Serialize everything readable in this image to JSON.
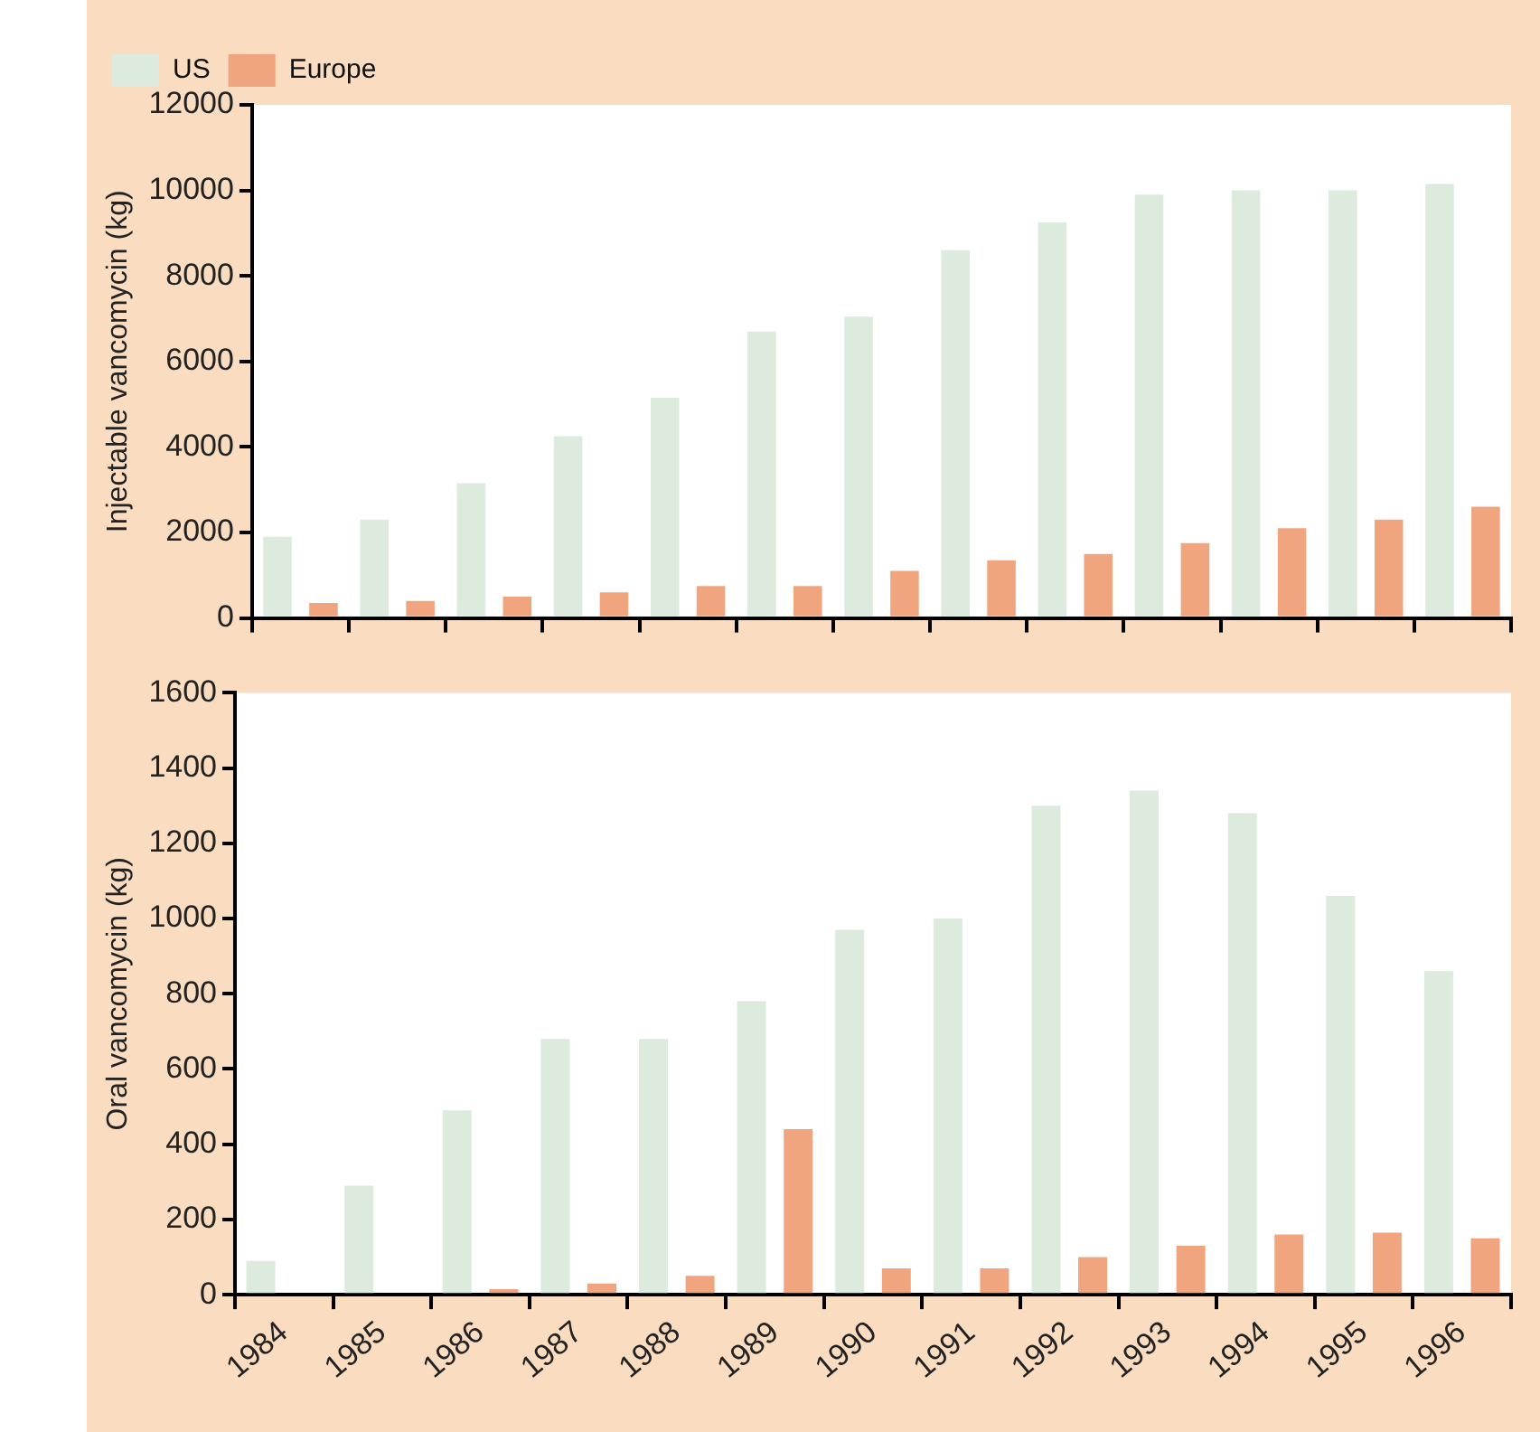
{
  "chart_data": [
    {
      "type": "bar",
      "ylabel": "Injectable vancomycin (kg)",
      "categories": [
        "1984",
        "1985",
        "1986",
        "1987",
        "1988",
        "1989",
        "1990",
        "1991",
        "1992",
        "1993",
        "1994",
        "1995",
        "1996"
      ],
      "series": [
        {
          "name": "US",
          "color": "#dcebdd",
          "values": [
            1900,
            2300,
            3150,
            4250,
            5150,
            6700,
            7050,
            8600,
            9250,
            9900,
            10000,
            10000,
            10150
          ]
        },
        {
          "name": "Europe",
          "color": "#f0a57f",
          "values": [
            350,
            400,
            500,
            600,
            750,
            750,
            1100,
            1350,
            1500,
            1750,
            2100,
            2300,
            2600
          ]
        }
      ],
      "ylim": [
        0,
        12000
      ],
      "yticks": [
        0,
        2000,
        4000,
        6000,
        8000,
        10000,
        12000
      ],
      "grid": false,
      "legend": "top left",
      "tick_labels": "y"
    },
    {
      "type": "bar",
      "ylabel": "Oral vancomycin (kg)",
      "categories": [
        "1984",
        "1985",
        "1986",
        "1987",
        "1988",
        "1989",
        "1990",
        "1991",
        "1992",
        "1993",
        "1994",
        "1995",
        "1996"
      ],
      "series": [
        {
          "color": "#dcebdd",
          "values": [
            90,
            290,
            490,
            680,
            680,
            780,
            970,
            1000,
            1300,
            1340,
            1280,
            1060,
            860
          ]
        },
        {
          "color": "#f0a57f",
          "values": [
            null,
            null,
            15,
            30,
            50,
            440,
            70,
            70,
            100,
            130,
            160,
            165,
            150
          ]
        }
      ],
      "ylim": [
        0,
        1600
      ],
      "yticks": [
        0,
        200,
        400,
        600,
        800,
        1000,
        1200,
        1400,
        1600
      ],
      "grid": false,
      "legend": false
    }
  ]
}
